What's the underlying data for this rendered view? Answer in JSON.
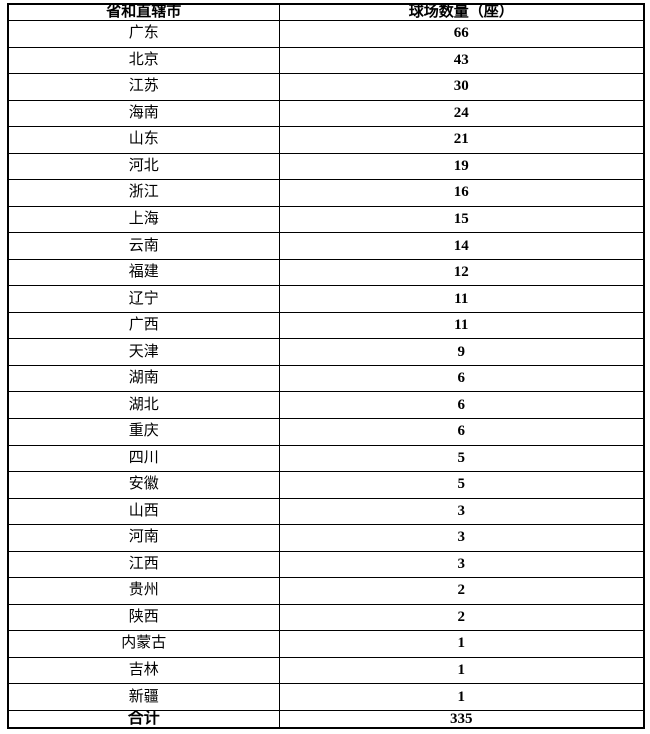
{
  "colors": {
    "background": "#ffffff",
    "border": "#000000",
    "text": "#000000"
  },
  "table": {
    "columns": [
      "省和直辖市",
      "球场数量（座）"
    ],
    "rows": [
      [
        "广东",
        "66"
      ],
      [
        "北京",
        "43"
      ],
      [
        "江苏",
        "30"
      ],
      [
        "海南",
        "24"
      ],
      [
        "山东",
        "21"
      ],
      [
        "河北",
        "19"
      ],
      [
        "浙江",
        "16"
      ],
      [
        "上海",
        "15"
      ],
      [
        "云南",
        "14"
      ],
      [
        "福建",
        "12"
      ],
      [
        "辽宁",
        "11"
      ],
      [
        "广西",
        "11"
      ],
      [
        "天津",
        "9"
      ],
      [
        "湖南",
        "6"
      ],
      [
        "湖北",
        "6"
      ],
      [
        "重庆",
        "6"
      ],
      [
        "四川",
        "5"
      ],
      [
        "安徽",
        "5"
      ],
      [
        "山西",
        "3"
      ],
      [
        "河南",
        "3"
      ],
      [
        "江西",
        "3"
      ],
      [
        "贵州",
        "2"
      ],
      [
        "陕西",
        "2"
      ],
      [
        "内蒙古",
        "1"
      ],
      [
        "吉林",
        "1"
      ],
      [
        "新疆",
        "1"
      ]
    ],
    "total_label": "合计",
    "total_value": "335"
  },
  "chart_data": {
    "type": "table",
    "columns": [
      "省和直辖市",
      "球场数量（座）"
    ],
    "categories": [
      "广东",
      "北京",
      "江苏",
      "海南",
      "山东",
      "河北",
      "浙江",
      "上海",
      "云南",
      "福建",
      "辽宁",
      "广西",
      "天津",
      "湖南",
      "湖北",
      "重庆",
      "四川",
      "安徽",
      "山西",
      "河南",
      "江西",
      "贵州",
      "陕西",
      "内蒙古",
      "吉林",
      "新疆"
    ],
    "values": [
      66,
      43,
      30,
      24,
      21,
      19,
      16,
      15,
      14,
      12,
      11,
      11,
      9,
      6,
      6,
      6,
      5,
      5,
      3,
      3,
      3,
      2,
      2,
      1,
      1,
      1
    ],
    "total": {
      "label": "合计",
      "value": 335
    },
    "grid": true,
    "legend": false
  }
}
